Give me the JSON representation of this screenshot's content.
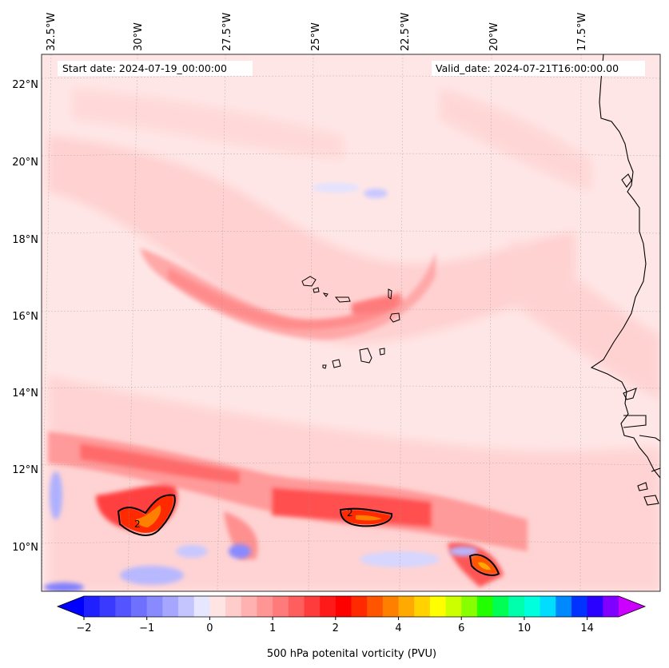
{
  "header": {
    "start_date": "Start date: 2024-07-19_00:00:00",
    "valid_date": "Valid_date: 2024-07-21T16:00:00.00"
  },
  "longitude_labels": [
    "32.5°W",
    "30°W",
    "27.5°W",
    "25°W",
    "22.5°W",
    "20°W",
    "17.5°W"
  ],
  "latitude_labels": [
    "22°N",
    "20°N",
    "18°N",
    "16°N",
    "14°N",
    "12°N",
    "10°N"
  ],
  "contour_label": "2",
  "colorbar": {
    "label": "500 hPa potenital vorticity (PVU)",
    "tick_labels": [
      "−2",
      "−1",
      "0",
      "1",
      "2",
      "4",
      "6",
      "10",
      "14"
    ],
    "colors": [
      "#2020ff",
      "#3a3aff",
      "#5555ff",
      "#7070ff",
      "#8a8aff",
      "#a6a6ff",
      "#c4c4ff",
      "#e6e6ff",
      "#ffe4e4",
      "#ffcccc",
      "#ffb0b0",
      "#ff9595",
      "#ff7a7a",
      "#ff5e5e",
      "#ff3c3c",
      "#ff1a1a",
      "#ff0000",
      "#ff2a00",
      "#ff5500",
      "#ff8000",
      "#ffaa00",
      "#ffd200",
      "#ffff00",
      "#ccff00",
      "#88ff00",
      "#22ff00",
      "#00ff55",
      "#00ffaa",
      "#00ffdd",
      "#00ddff",
      "#0088ff",
      "#0033ff",
      "#2a00ff",
      "#8000ff"
    ],
    "under_color": "#0000ff",
    "over_color": "#cc00ff"
  },
  "colors": {
    "background_field": "#ffe8e8",
    "coastline": "#000000"
  }
}
